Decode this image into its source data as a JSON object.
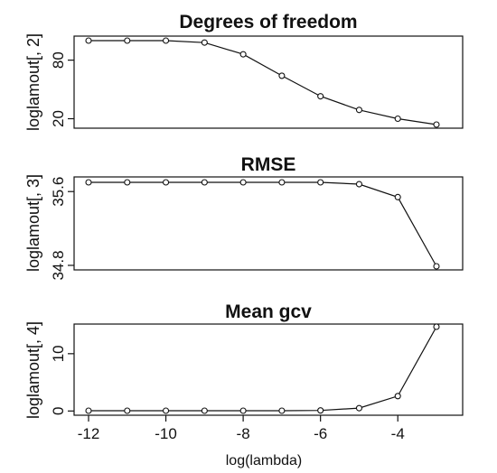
{
  "chart_data": [
    {
      "type": "line",
      "title": "Degrees of freedom",
      "ylabel": "loglamout[, 2]",
      "xlabel": "",
      "x": [
        -12,
        -11,
        -10,
        -9,
        -8,
        -7,
        -6,
        -5,
        -4,
        -3
      ],
      "values": [
        100,
        100,
        100,
        98,
        86,
        64,
        43,
        29,
        20,
        14
      ],
      "xlim": [
        -12,
        -3
      ],
      "ylim": [
        14,
        100
      ],
      "yticks": [
        20,
        80
      ],
      "ytick_labels": [
        "20",
        "80"
      ],
      "grid": false
    },
    {
      "type": "line",
      "title": "RMSE",
      "ylabel": "loglamout[, 3]",
      "xlabel": "",
      "x": [
        -12,
        -11,
        -10,
        -9,
        -8,
        -7,
        -6,
        -5,
        -4,
        -3
      ],
      "values": [
        35.7,
        35.7,
        35.7,
        35.7,
        35.7,
        35.7,
        35.7,
        35.68,
        35.54,
        34.79
      ],
      "xlim": [
        -12,
        -3
      ],
      "ylim": [
        34.79,
        35.7
      ],
      "yticks": [
        34.8,
        35.6
      ],
      "ytick_labels": [
        "34.8",
        "35.6"
      ],
      "grid": false
    },
    {
      "type": "line",
      "title": "Mean gcv",
      "ylabel": "loglamout[, 4]",
      "xlabel": "log(lambda)",
      "x": [
        -12,
        -11,
        -10,
        -9,
        -8,
        -7,
        -6,
        -5,
        -4,
        -3
      ],
      "values": [
        0.05,
        0.05,
        0.05,
        0.05,
        0.05,
        0.05,
        0.1,
        0.5,
        2.6,
        14.7
      ],
      "xlim": [
        -12,
        -3
      ],
      "ylim": [
        0.05,
        14.7
      ],
      "yticks": [
        0,
        10
      ],
      "ytick_labels": [
        "0",
        "10"
      ],
      "xticks": [
        -12,
        -10,
        -8,
        -6,
        -4
      ],
      "xtick_labels": [
        "-12",
        "-10",
        "-8",
        "-6",
        "-4"
      ],
      "grid": false
    }
  ]
}
